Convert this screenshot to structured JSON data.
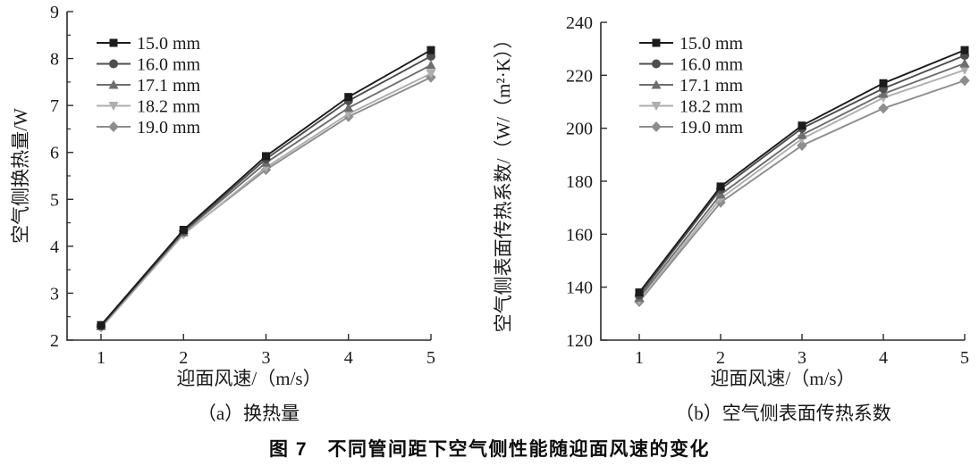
{
  "figure": {
    "caption": "图 7　不同管间距下空气侧性能随迎面风速的变化"
  },
  "colors": {
    "axis": "#2b2b2b",
    "text": "#1a1a1a",
    "background": "#ffffff"
  },
  "chart_data": [
    {
      "type": "line",
      "panel": "a",
      "subtitle": "（a）换热量",
      "xlabel": "迎面风速/（m/s）",
      "ylabel": "空气侧换热量/W",
      "x": [
        1,
        2,
        3,
        4,
        5
      ],
      "xticks": [
        1,
        2,
        3,
        4,
        5
      ],
      "xlim": [
        0.6,
        5
      ],
      "ylim": [
        2,
        9
      ],
      "yticks": [
        2,
        3,
        4,
        5,
        6,
        7,
        8,
        9
      ],
      "y_minor_step": 0.5,
      "grid": false,
      "legend_position": "top-left",
      "series": [
        {
          "name": "15.0 mm",
          "marker": "square",
          "color": "#1c1c1c",
          "values": [
            2.32,
            4.35,
            5.92,
            7.18,
            8.18
          ]
        },
        {
          "name": "16.0 mm",
          "marker": "circle",
          "color": "#4e4e4e",
          "values": [
            2.3,
            4.32,
            5.86,
            7.1,
            8.05
          ]
        },
        {
          "name": "17.1 mm",
          "marker": "triangle-up",
          "color": "#6e6e6e",
          "values": [
            2.3,
            4.3,
            5.78,
            6.95,
            7.86
          ]
        },
        {
          "name": "18.2 mm",
          "marker": "triangle-down",
          "color": "#aeaeae",
          "values": [
            2.26,
            4.25,
            5.68,
            6.82,
            7.68
          ]
        },
        {
          "name": "19.0 mm",
          "marker": "diamond",
          "color": "#8d8d8d",
          "values": [
            2.28,
            4.27,
            5.63,
            6.76,
            7.6
          ]
        }
      ]
    },
    {
      "type": "line",
      "panel": "b",
      "subtitle": "（b）空气侧表面传热系数",
      "xlabel": "迎面风速/（m/s）",
      "ylabel": "空气侧表面传热系数/（W/（m²·K））",
      "x": [
        1,
        2,
        3,
        4,
        5
      ],
      "xticks": [
        1,
        2,
        3,
        4,
        5
      ],
      "xlim": [
        0.5,
        5
      ],
      "ylim": [
        120,
        240
      ],
      "yticks": [
        120,
        140,
        160,
        180,
        200,
        220,
        240
      ],
      "y_minor_step": 0,
      "grid": false,
      "legend_position": "top-left",
      "series": [
        {
          "name": "15.0 mm",
          "marker": "square",
          "color": "#1c1c1c",
          "values": [
            138.0,
            178.0,
            201.0,
            217.0,
            229.5
          ]
        },
        {
          "name": "16.0 mm",
          "marker": "circle",
          "color": "#4e4e4e",
          "values": [
            137.0,
            177.0,
            200.0,
            215.0,
            227.5
          ]
        },
        {
          "name": "17.1 mm",
          "marker": "triangle-up",
          "color": "#6e6e6e",
          "values": [
            136.0,
            175.0,
            197.5,
            213.0,
            224.5
          ]
        },
        {
          "name": "18.2 mm",
          "marker": "triangle-down",
          "color": "#aeaeae",
          "values": [
            135.0,
            173.5,
            196.0,
            211.5,
            222.0
          ]
        },
        {
          "name": "19.0 mm",
          "marker": "diamond",
          "color": "#8d8d8d",
          "values": [
            134.5,
            172.0,
            193.5,
            207.5,
            218.0
          ]
        }
      ]
    }
  ]
}
